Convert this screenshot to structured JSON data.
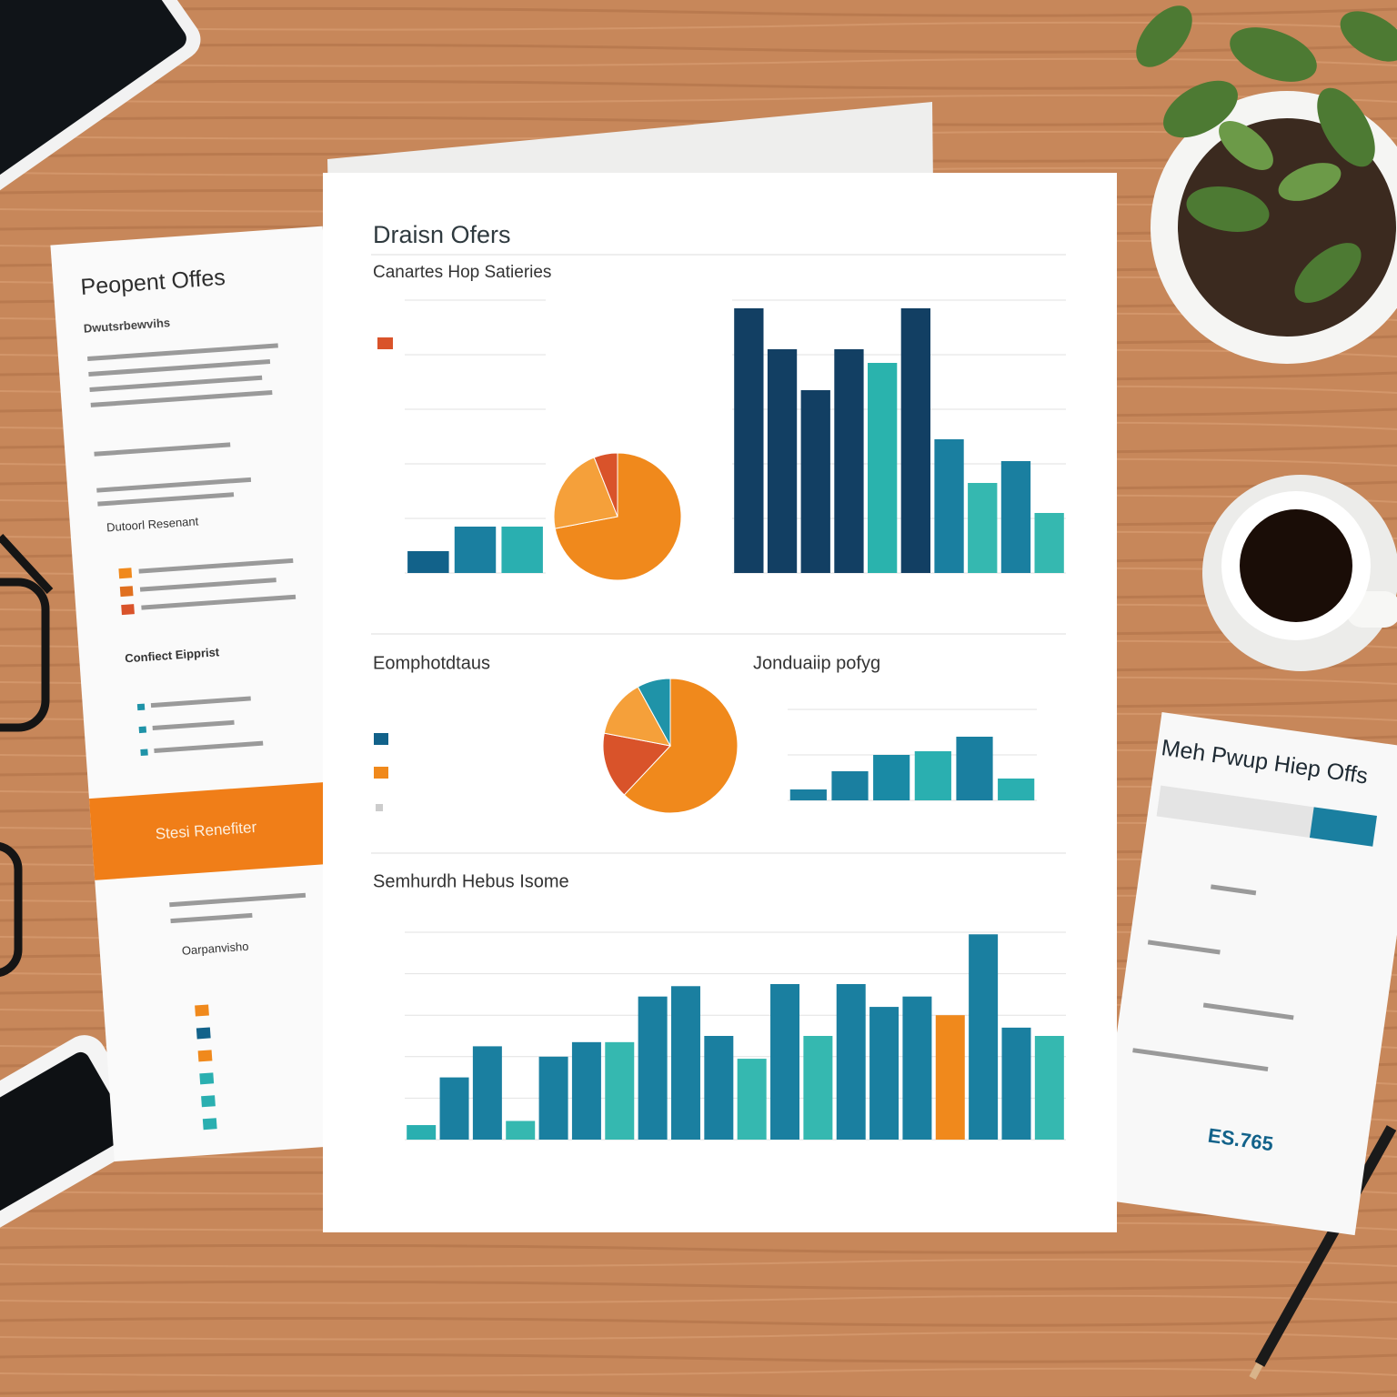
{
  "main_report": {
    "title": "Draisn Ofers",
    "subtitle": "Canartes Hop Satieries",
    "charts": [
      {
        "type": "bar",
        "values": [
          8,
          17,
          17
        ],
        "colors": [
          "#12628a",
          "#1a7fa0",
          "#2aafb0"
        ],
        "ylim": [
          0,
          100
        ],
        "yticks": [
          0,
          20,
          40,
          60,
          80,
          100
        ],
        "grid": true
      },
      {
        "type": "pie",
        "values": [
          72,
          22,
          6
        ],
        "colors": [
          "#f0891c",
          "#f5a03a",
          "#d9532a"
        ]
      },
      {
        "type": "bar",
        "values": [
          97,
          82,
          67,
          82,
          77,
          97,
          49,
          33,
          41,
          22
        ],
        "colors": [
          "#123f63",
          "#123f63",
          "#123f63",
          "#123f63",
          "#2ab3ad",
          "#123f63",
          "#1a7fa0",
          "#35b8b0",
          "#1a7fa0",
          "#35b8b0"
        ],
        "ylim": [
          0,
          100
        ],
        "yticks": [
          0,
          20,
          40,
          60,
          80,
          100
        ],
        "grid": true
      },
      {
        "type": "pie",
        "title": "Eomphotdtaus",
        "values": [
          62,
          16,
          14,
          8
        ],
        "colors": [
          "#f0891c",
          "#d9532a",
          "#f5a03a",
          "#1f93a8"
        ]
      },
      {
        "type": "bar",
        "title": "Jonduaiip pofyg",
        "values": [
          12,
          32,
          50,
          54,
          70,
          24
        ],
        "colors": [
          "#1a7fa0",
          "#1a7fa0",
          "#1a8aa5",
          "#2aafb0",
          "#1a7fa0",
          "#2aafb0"
        ],
        "ylim": [
          0,
          100
        ],
        "yticks": [
          0,
          50,
          100
        ],
        "grid": true
      },
      {
        "type": "bar",
        "title": "Semhurdh Hebus Isome",
        "values": [
          7,
          30,
          45,
          9,
          40,
          47,
          47,
          69,
          74,
          50,
          39,
          75,
          50,
          75,
          64,
          69,
          60,
          99,
          54,
          50
        ],
        "colors": [
          "#2aafb0",
          "#1a7fa0",
          "#1a7fa0",
          "#35b8b0",
          "#1a7fa0",
          "#1a7fa0",
          "#35b8b0",
          "#1a7fa0",
          "#1a7fa0",
          "#1a7fa0",
          "#35b8b0",
          "#1a7fa0",
          "#35b8b0",
          "#1a7fa0",
          "#1a7fa0",
          "#1a7fa0",
          "#f0891c",
          "#1a7fa0",
          "#1a7fa0",
          "#35b8b0"
        ],
        "ylim": [
          0,
          100
        ],
        "yticks": [
          0,
          20,
          40,
          60,
          80,
          100
        ],
        "grid": true
      }
    ]
  },
  "left_sheet": {
    "title": "Peopent Offes",
    "subtitle": "Dwutsrbewvihs",
    "section": "Dutoorl Resenant",
    "banner": "Stesi Renefiter",
    "contact": "Confiect Eipprist",
    "footer": "Oarpanvisho"
  },
  "right_sheet": {
    "title": "Meh Pwup Hiep Offs",
    "total": "ES.765"
  }
}
